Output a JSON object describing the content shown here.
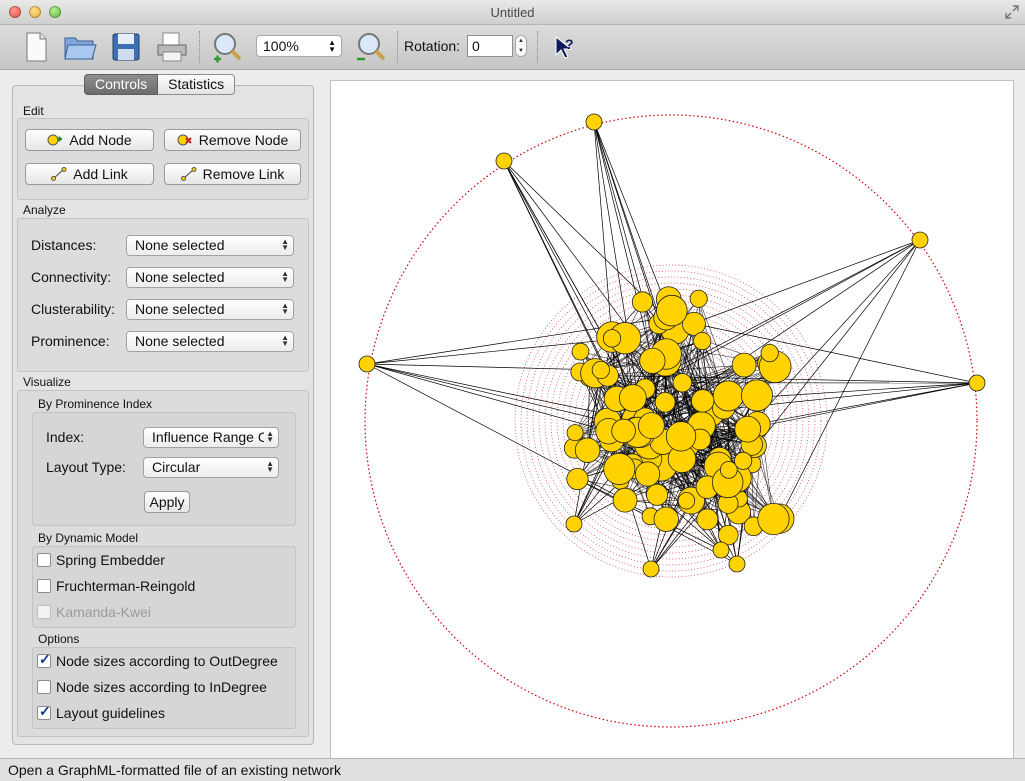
{
  "window": {
    "title": "Untitled"
  },
  "toolbar": {
    "zoom_value": "100%",
    "rotation_label": "Rotation:",
    "rotation_value": "0"
  },
  "tabs": [
    {
      "label": "Controls"
    },
    {
      "label": "Statistics"
    }
  ],
  "edit": {
    "label": "Edit",
    "add_node": "Add Node",
    "remove_node": "Remove Node",
    "add_link": "Add Link",
    "remove_link": "Remove Link"
  },
  "analyze": {
    "label": "Analyze",
    "rows": [
      {
        "label": "Distances:",
        "value": "None selected"
      },
      {
        "label": "Connectivity:",
        "value": "None selected"
      },
      {
        "label": "Clusterability:",
        "value": "None selected"
      },
      {
        "label": "Prominence:",
        "value": "None selected"
      }
    ]
  },
  "visualize": {
    "label": "Visualize",
    "prominence": {
      "label": "By Prominence Index",
      "index_label": "Index:",
      "index_value": "Influence Range C",
      "layout_label": "Layout Type:",
      "layout_value": "Circular",
      "apply": "Apply"
    },
    "dynamic": {
      "label": "By Dynamic Model",
      "options": [
        {
          "label": "Spring Embedder",
          "checked": false,
          "enabled": true
        },
        {
          "label": "Fruchterman-Reingold",
          "checked": false,
          "enabled": true
        },
        {
          "label": "Kamanda-Kwei",
          "checked": false,
          "enabled": false
        }
      ]
    },
    "options": {
      "label": "Options",
      "items": [
        {
          "label": "Node sizes according to OutDegree",
          "checked": true
        },
        {
          "label": "Node sizes according to InDegree",
          "checked": false
        },
        {
          "label": "Layout guidelines",
          "checked": true
        }
      ]
    }
  },
  "graph": {
    "node_color": "#ffd200",
    "edge_color": "#000000",
    "guide_color": "#cc0000"
  },
  "status": {
    "text": "Open a GraphML-formatted file of an existing network"
  }
}
